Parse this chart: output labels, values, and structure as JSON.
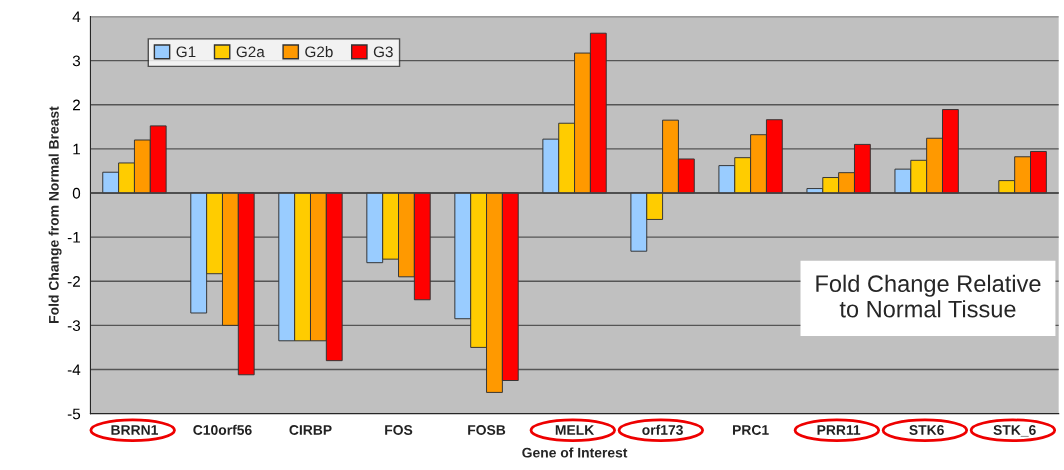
{
  "chart_data": {
    "type": "bar",
    "xlabel": "Gene of Interest",
    "ylabel": "Fold Change from Normal Breast",
    "categories": [
      "BRRN1",
      "C10orf56",
      "CIRBP",
      "FOS",
      "FOSB",
      "MELK",
      "orf173",
      "PRC1",
      "PRR11",
      "STK6",
      "STK_6"
    ],
    "series": [
      {
        "name": "G1",
        "color": "#99ccff",
        "values": [
          0.47,
          -2.72,
          -3.35,
          -1.58,
          -2.85,
          1.22,
          -1.32,
          0.62,
          0.1,
          0.54,
          null
        ]
      },
      {
        "name": "G2a",
        "color": "#ffcc00",
        "values": [
          0.68,
          -1.83,
          -3.35,
          -1.5,
          -3.5,
          1.58,
          -0.6,
          0.8,
          0.35,
          0.74,
          0.28
        ]
      },
      {
        "name": "G2b",
        "color": "#ff9900",
        "values": [
          1.2,
          -3.0,
          -3.35,
          -1.9,
          -4.52,
          3.17,
          1.65,
          1.32,
          0.46,
          1.24,
          0.82
        ]
      },
      {
        "name": "G3",
        "color": "#ff0000",
        "values": [
          1.52,
          -4.12,
          -3.8,
          -2.42,
          -4.25,
          3.62,
          0.77,
          1.66,
          1.1,
          1.89,
          0.94
        ]
      }
    ],
    "ylim": [
      -5,
      4
    ],
    "yticks": [
      -5,
      -4,
      -3,
      -2,
      -1,
      0,
      1,
      2,
      3,
      4
    ],
    "grid": "y",
    "legend": "top left",
    "annotations": [
      {
        "text": "Fold Change Relative\nto Normal Tissue"
      }
    ]
  }
}
